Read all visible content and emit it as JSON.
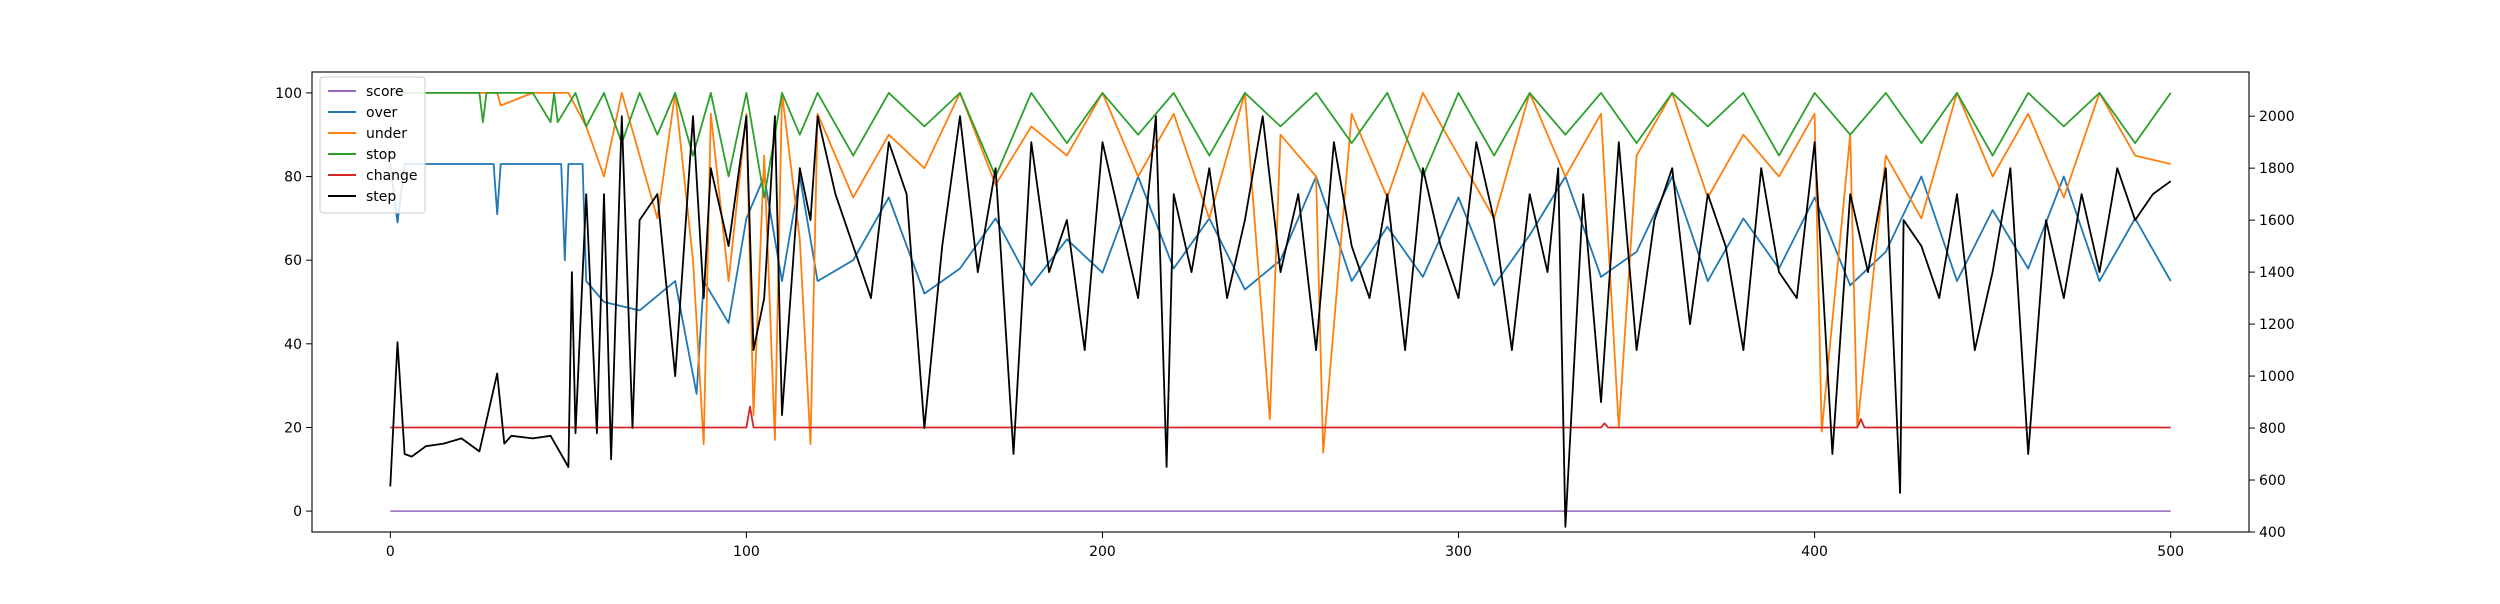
{
  "chart_data": {
    "type": "line",
    "title": "",
    "xlabel": "",
    "ylabel": "",
    "y2label": "",
    "xlim": [
      -22,
      522
    ],
    "ylim": [
      -5,
      105
    ],
    "y2lim": [
      400,
      2170
    ],
    "xticks": [
      0,
      100,
      200,
      300,
      400,
      500
    ],
    "yticks": [
      0,
      20,
      40,
      60,
      80,
      100
    ],
    "y2ticks": [
      400,
      600,
      800,
      1000,
      1200,
      1400,
      1600,
      1800,
      2000
    ],
    "grid": false,
    "legend_position": "top-left",
    "series": [
      {
        "name": "score",
        "axis": "left",
        "color": "#9467bd",
        "x": [
          0,
          500
        ],
        "y": [
          0,
          0
        ]
      },
      {
        "name": "over",
        "axis": "left",
        "color": "#1f77b4",
        "x": [
          0,
          2,
          4,
          29,
          30,
          31,
          48,
          49,
          50,
          54,
          55,
          60,
          70,
          80,
          86,
          88,
          95,
          100,
          105,
          110,
          115,
          120,
          130,
          140,
          150,
          160,
          170,
          180,
          190,
          200,
          210,
          220,
          230,
          240,
          250,
          260,
          270,
          280,
          290,
          300,
          310,
          320,
          330,
          340,
          350,
          360,
          370,
          380,
          390,
          400,
          410,
          420,
          430,
          440,
          450,
          460,
          470,
          480,
          490,
          500
        ],
        "y": [
          83,
          69,
          83,
          83,
          71,
          83,
          83,
          60,
          83,
          83,
          55,
          50,
          48,
          55,
          28,
          55,
          45,
          70,
          80,
          55,
          80,
          55,
          60,
          75,
          52,
          58,
          70,
          54,
          65,
          57,
          80,
          58,
          70,
          53,
          60,
          80,
          55,
          68,
          56,
          75,
          54,
          66,
          80,
          56,
          62,
          80,
          55,
          70,
          58,
          75,
          54,
          62,
          80,
          55,
          72,
          58,
          80,
          55,
          70,
          55
        ]
      },
      {
        "name": "under",
        "axis": "left",
        "color": "#ff7f0e",
        "x": [
          0,
          20,
          30,
          31,
          40,
          50,
          55,
          60,
          65,
          70,
          75,
          80,
          85,
          88,
          90,
          95,
          100,
          102,
          105,
          108,
          110,
          115,
          118,
          120,
          130,
          140,
          150,
          160,
          170,
          180,
          190,
          200,
          210,
          220,
          230,
          240,
          247,
          250,
          260,
          262,
          270,
          280,
          290,
          300,
          310,
          320,
          330,
          340,
          345,
          350,
          360,
          370,
          380,
          390,
          400,
          402,
          410,
          412,
          420,
          430,
          440,
          450,
          460,
          470,
          480,
          490,
          500
        ],
        "y": [
          100,
          100,
          100,
          97,
          100,
          100,
          92,
          80,
          100,
          85,
          70,
          100,
          60,
          16,
          95,
          55,
          95,
          23,
          85,
          17,
          100,
          65,
          16,
          95,
          75,
          90,
          82,
          100,
          78,
          92,
          85,
          100,
          80,
          95,
          70,
          100,
          22,
          90,
          80,
          14,
          95,
          75,
          100,
          85,
          70,
          100,
          80,
          95,
          20,
          85,
          100,
          75,
          90,
          80,
          95,
          19,
          90,
          20,
          85,
          70,
          100,
          80,
          95,
          75,
          100,
          85,
          83
        ]
      },
      {
        "name": "stop",
        "axis": "left",
        "color": "#2ca02c",
        "x": [
          0,
          25,
          26,
          27,
          40,
          45,
          46,
          47,
          52,
          55,
          60,
          65,
          70,
          75,
          80,
          85,
          90,
          95,
          100,
          105,
          110,
          115,
          120,
          130,
          140,
          150,
          160,
          170,
          180,
          190,
          200,
          210,
          220,
          230,
          240,
          250,
          260,
          270,
          280,
          290,
          300,
          310,
          320,
          330,
          340,
          350,
          360,
          370,
          380,
          390,
          400,
          410,
          420,
          430,
          440,
          450,
          460,
          470,
          480,
          490,
          500
        ],
        "y": [
          100,
          100,
          93,
          100,
          100,
          93,
          100,
          93,
          100,
          92,
          100,
          88,
          100,
          90,
          100,
          85,
          100,
          80,
          100,
          75,
          100,
          90,
          100,
          85,
          100,
          92,
          100,
          80,
          100,
          88,
          100,
          90,
          100,
          85,
          100,
          92,
          100,
          88,
          100,
          80,
          100,
          85,
          100,
          90,
          100,
          88,
          100,
          92,
          100,
          85,
          100,
          90,
          100,
          88,
          100,
          85,
          100,
          92,
          100,
          88,
          100
        ]
      },
      {
        "name": "change",
        "axis": "left",
        "color": "#d62728",
        "x": [
          0,
          50,
          60,
          100,
          101,
          102,
          200,
          300,
          340,
          341,
          342,
          400,
          412,
          413,
          414,
          500
        ],
        "y": [
          20,
          20,
          20,
          20,
          25,
          20,
          20,
          20,
          20,
          21,
          20,
          20,
          20,
          22,
          20,
          20
        ]
      },
      {
        "name": "step",
        "axis": "right",
        "color": "#000000",
        "x": [
          0,
          2,
          4,
          6,
          10,
          15,
          20,
          25,
          30,
          32,
          34,
          40,
          45,
          50,
          51,
          52,
          55,
          58,
          60,
          62,
          65,
          68,
          70,
          75,
          80,
          85,
          88,
          90,
          95,
          100,
          102,
          105,
          108,
          110,
          115,
          118,
          120,
          125,
          130,
          135,
          140,
          145,
          150,
          155,
          160,
          165,
          170,
          175,
          180,
          185,
          190,
          195,
          200,
          205,
          210,
          215,
          218,
          220,
          225,
          230,
          235,
          240,
          245,
          250,
          255,
          260,
          265,
          270,
          275,
          280,
          285,
          290,
          295,
          300,
          305,
          310,
          315,
          320,
          325,
          328,
          330,
          335,
          340,
          345,
          350,
          355,
          360,
          365,
          370,
          375,
          380,
          385,
          390,
          395,
          400,
          405,
          410,
          415,
          420,
          424,
          425,
          430,
          435,
          440,
          445,
          450,
          455,
          460,
          465,
          470,
          475,
          480,
          485,
          490,
          495,
          500
        ],
        "y": [
          575,
          1130,
          700,
          690,
          730,
          740,
          760,
          710,
          1010,
          740,
          770,
          760,
          770,
          650,
          1400,
          780,
          1700,
          780,
          1700,
          680,
          2000,
          800,
          1600,
          1700,
          1000,
          2000,
          1300,
          1800,
          1500,
          2000,
          1100,
          1300,
          2000,
          850,
          1800,
          1600,
          2000,
          1700,
          1500,
          1300,
          1900,
          1700,
          800,
          1500,
          2000,
          1400,
          1800,
          700,
          1900,
          1400,
          1600,
          1100,
          1900,
          1600,
          1300,
          2000,
          650,
          1700,
          1400,
          1800,
          1300,
          1600,
          2000,
          1400,
          1700,
          1100,
          1900,
          1500,
          1300,
          1700,
          1100,
          1800,
          1500,
          1300,
          1900,
          1600,
          1100,
          1700,
          1400,
          1800,
          420,
          1700,
          900,
          1900,
          1100,
          1600,
          1800,
          1200,
          1700,
          1500,
          1100,
          1800,
          1400,
          1300,
          1900,
          700,
          1700,
          1400,
          1800,
          550,
          1600,
          1500,
          1300,
          1700,
          1100,
          1400,
          1800,
          700,
          1600,
          1300,
          1700,
          1400,
          1800,
          1600,
          1700,
          1750
        ]
      }
    ]
  }
}
